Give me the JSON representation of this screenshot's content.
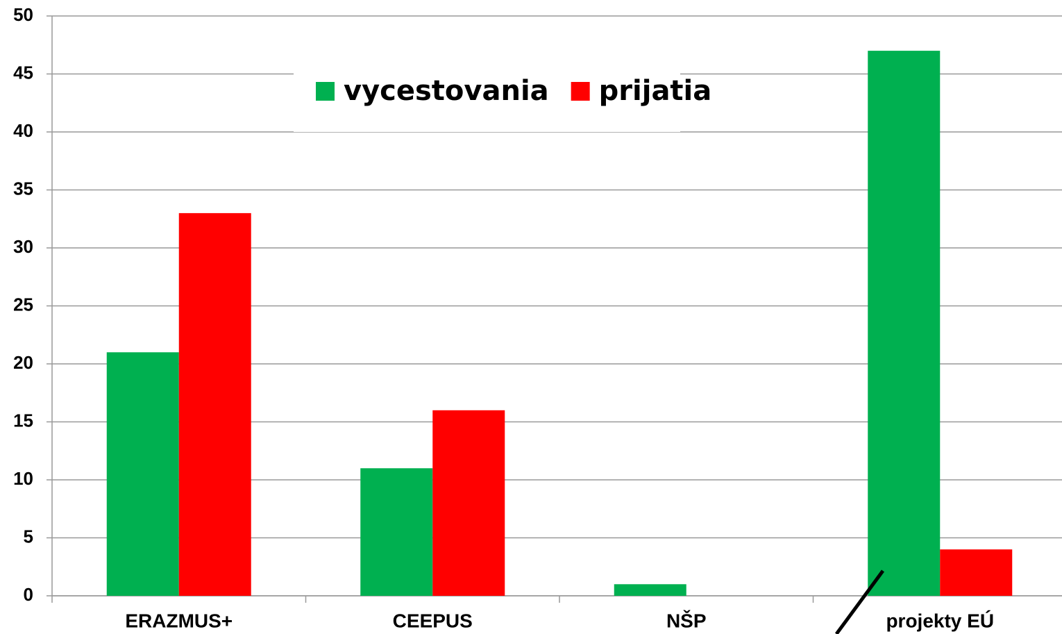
{
  "chart_data": {
    "type": "bar",
    "categories": [
      "ERAZMUS+",
      "CEEPUS",
      "NŠP",
      "projekty EÚ"
    ],
    "series": [
      {
        "name": "vycestovania",
        "color": "#00b050",
        "values": [
          21,
          11,
          1,
          47
        ]
      },
      {
        "name": "prijatia",
        "color": "#ff0000",
        "values": [
          33,
          16,
          0,
          4
        ]
      }
    ],
    "ylim": [
      0,
      50
    ],
    "yticks": [
      0,
      5,
      10,
      15,
      20,
      25,
      30,
      35,
      40,
      45,
      50
    ],
    "grid": true,
    "legend": "upper center"
  }
}
